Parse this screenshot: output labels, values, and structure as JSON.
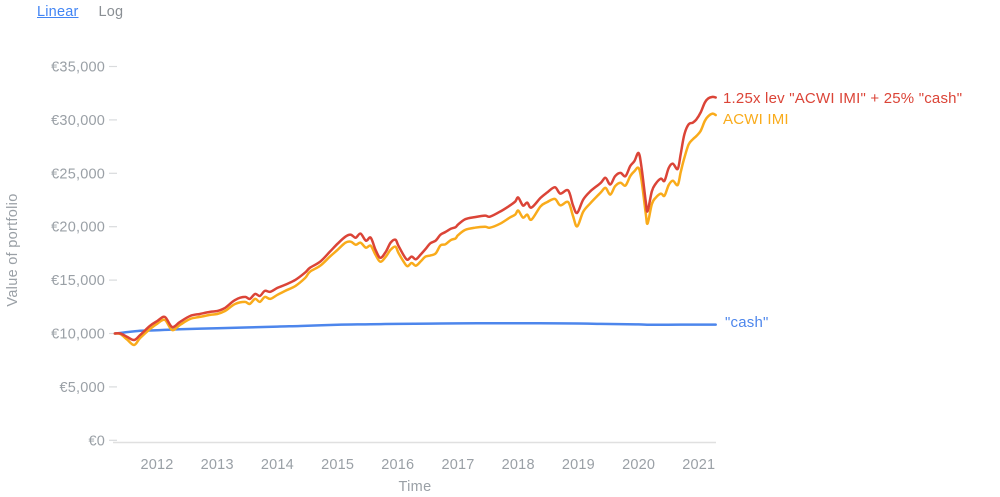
{
  "view_toggle": {
    "linear_label": "Linear",
    "log_label": "Log",
    "active": "Linear"
  },
  "colors": {
    "lev": "#DB4437",
    "acwi": "#F9AB1B",
    "cash": "#4D86EC",
    "tick_text": "#9AA0A6",
    "axis_line": "#E0E0E0",
    "link_blue": "#4285F4"
  },
  "chart_data": {
    "type": "line",
    "title": "",
    "xlabel": "Time",
    "ylabel": "Value of portfolio",
    "currency": "EUR",
    "grid": false,
    "legend_position": "line-end-labels",
    "xlim": [
      2011.3,
      2021.3
    ],
    "ylim": [
      0,
      35000
    ],
    "x_ticks": [
      "2012",
      "2013",
      "2014",
      "2015",
      "2016",
      "2017",
      "2018",
      "2019",
      "2020",
      "2021"
    ],
    "x_tick_values": [
      2012,
      2013,
      2014,
      2015,
      2016,
      2017,
      2018,
      2019,
      2020,
      2021
    ],
    "y_ticks": [
      {
        "label": "€0",
        "value": 0
      },
      {
        "label": "€5,000",
        "value": 5000
      },
      {
        "label": "€10,000",
        "value": 10000
      },
      {
        "label": "€15,000",
        "value": 15000
      },
      {
        "label": "€20,000",
        "value": 20000
      },
      {
        "label": "€25,000",
        "value": 25000
      },
      {
        "label": "€30,000",
        "value": 30000
      },
      {
        "label": "€35,000",
        "value": 35000
      }
    ],
    "series": [
      {
        "name": "1.25x lev \"ACWI IMI\" + 25% \"cash\"",
        "color": "#DB4437",
        "points": [
          [
            2011.3,
            10000
          ],
          [
            2011.39,
            10000
          ],
          [
            2011.5,
            9700
          ],
          [
            2011.62,
            9390
          ],
          [
            2011.72,
            9860
          ],
          [
            2011.88,
            10700
          ],
          [
            2012.0,
            11150
          ],
          [
            2012.13,
            11550
          ],
          [
            2012.25,
            10610
          ],
          [
            2012.38,
            11080
          ],
          [
            2012.55,
            11640
          ],
          [
            2012.71,
            11830
          ],
          [
            2012.88,
            12020
          ],
          [
            2013.0,
            12110
          ],
          [
            2013.13,
            12400
          ],
          [
            2013.3,
            13150
          ],
          [
            2013.46,
            13430
          ],
          [
            2013.54,
            13240
          ],
          [
            2013.63,
            13710
          ],
          [
            2013.71,
            13520
          ],
          [
            2013.79,
            13990
          ],
          [
            2013.88,
            13900
          ],
          [
            2014.0,
            14270
          ],
          [
            2014.13,
            14560
          ],
          [
            2014.3,
            15030
          ],
          [
            2014.46,
            15700
          ],
          [
            2014.54,
            16150
          ],
          [
            2014.71,
            16720
          ],
          [
            2014.87,
            17650
          ],
          [
            2015.0,
            18410
          ],
          [
            2015.13,
            19060
          ],
          [
            2015.22,
            19250
          ],
          [
            2015.3,
            18970
          ],
          [
            2015.38,
            19350
          ],
          [
            2015.47,
            18690
          ],
          [
            2015.55,
            18970
          ],
          [
            2015.63,
            17840
          ],
          [
            2015.71,
            17090
          ],
          [
            2015.8,
            17650
          ],
          [
            2015.88,
            18500
          ],
          [
            2015.96,
            18780
          ],
          [
            2016.01,
            18220
          ],
          [
            2016.1,
            17300
          ],
          [
            2016.16,
            16900
          ],
          [
            2016.23,
            17200
          ],
          [
            2016.3,
            16950
          ],
          [
            2016.38,
            17400
          ],
          [
            2016.46,
            17900
          ],
          [
            2016.54,
            18450
          ],
          [
            2016.63,
            18700
          ],
          [
            2016.71,
            19250
          ],
          [
            2016.79,
            19500
          ],
          [
            2016.88,
            19800
          ],
          [
            2016.96,
            19950
          ],
          [
            2017.0,
            20200
          ],
          [
            2017.12,
            20700
          ],
          [
            2017.28,
            20900
          ],
          [
            2017.45,
            21040
          ],
          [
            2017.53,
            20940
          ],
          [
            2017.7,
            21410
          ],
          [
            2017.86,
            21980
          ],
          [
            2017.95,
            22350
          ],
          [
            2018.0,
            22730
          ],
          [
            2018.08,
            21980
          ],
          [
            2018.15,
            22260
          ],
          [
            2018.22,
            21790
          ],
          [
            2018.37,
            22700
          ],
          [
            2018.48,
            23200
          ],
          [
            2018.61,
            23700
          ],
          [
            2018.7,
            23100
          ],
          [
            2018.83,
            23400
          ],
          [
            2018.91,
            22000
          ],
          [
            2018.98,
            21290
          ],
          [
            2019.08,
            22540
          ],
          [
            2019.2,
            23320
          ],
          [
            2019.37,
            24100
          ],
          [
            2019.45,
            24580
          ],
          [
            2019.53,
            23950
          ],
          [
            2019.61,
            24730
          ],
          [
            2019.7,
            25040
          ],
          [
            2019.78,
            24730
          ],
          [
            2019.86,
            25670
          ],
          [
            2019.93,
            26140
          ],
          [
            2020.0,
            26900
          ],
          [
            2020.05,
            25500
          ],
          [
            2020.12,
            22300
          ],
          [
            2020.15,
            21450
          ],
          [
            2020.22,
            23300
          ],
          [
            2020.28,
            24000
          ],
          [
            2020.37,
            24500
          ],
          [
            2020.43,
            24300
          ],
          [
            2020.5,
            25500
          ],
          [
            2020.57,
            25900
          ],
          [
            2020.65,
            25400
          ],
          [
            2020.7,
            26800
          ],
          [
            2020.76,
            28650
          ],
          [
            2020.83,
            29580
          ],
          [
            2020.9,
            29740
          ],
          [
            2020.96,
            30050
          ],
          [
            2021.03,
            30680
          ],
          [
            2021.1,
            31620
          ],
          [
            2021.16,
            32020
          ],
          [
            2021.23,
            32150
          ],
          [
            2021.28,
            32100
          ]
        ]
      },
      {
        "name": "ACWI IMI",
        "color": "#F9AB1B",
        "points": [
          [
            2011.3,
            10000
          ],
          [
            2011.39,
            9950
          ],
          [
            2011.5,
            9450
          ],
          [
            2011.62,
            8920
          ],
          [
            2011.72,
            9580
          ],
          [
            2011.88,
            10400
          ],
          [
            2012.0,
            10900
          ],
          [
            2012.13,
            11270
          ],
          [
            2012.25,
            10330
          ],
          [
            2012.38,
            10800
          ],
          [
            2012.55,
            11360
          ],
          [
            2012.71,
            11550
          ],
          [
            2012.88,
            11740
          ],
          [
            2013.0,
            11830
          ],
          [
            2013.13,
            12110
          ],
          [
            2013.3,
            12770
          ],
          [
            2013.46,
            12960
          ],
          [
            2013.54,
            12770
          ],
          [
            2013.63,
            13240
          ],
          [
            2013.71,
            12960
          ],
          [
            2013.79,
            13430
          ],
          [
            2013.88,
            13240
          ],
          [
            2014.0,
            13620
          ],
          [
            2014.13,
            13990
          ],
          [
            2014.3,
            14460
          ],
          [
            2014.46,
            15200
          ],
          [
            2014.54,
            15780
          ],
          [
            2014.71,
            16340
          ],
          [
            2014.87,
            17190
          ],
          [
            2015.0,
            17840
          ],
          [
            2015.13,
            18500
          ],
          [
            2015.22,
            18600
          ],
          [
            2015.3,
            18310
          ],
          [
            2015.38,
            18500
          ],
          [
            2015.47,
            18030
          ],
          [
            2015.55,
            18220
          ],
          [
            2015.63,
            17370
          ],
          [
            2015.71,
            16720
          ],
          [
            2015.8,
            17190
          ],
          [
            2015.88,
            17840
          ],
          [
            2015.96,
            18130
          ],
          [
            2016.01,
            17560
          ],
          [
            2016.1,
            16700
          ],
          [
            2016.16,
            16300
          ],
          [
            2016.23,
            16600
          ],
          [
            2016.3,
            16350
          ],
          [
            2016.38,
            16750
          ],
          [
            2016.46,
            17200
          ],
          [
            2016.54,
            17300
          ],
          [
            2016.63,
            17500
          ],
          [
            2016.71,
            18250
          ],
          [
            2016.79,
            18350
          ],
          [
            2016.88,
            18750
          ],
          [
            2016.96,
            18900
          ],
          [
            2017.0,
            19200
          ],
          [
            2017.12,
            19700
          ],
          [
            2017.28,
            19910
          ],
          [
            2017.45,
            20000
          ],
          [
            2017.53,
            19910
          ],
          [
            2017.7,
            20280
          ],
          [
            2017.86,
            20850
          ],
          [
            2017.95,
            21130
          ],
          [
            2018.0,
            21510
          ],
          [
            2018.08,
            20850
          ],
          [
            2018.15,
            21130
          ],
          [
            2018.22,
            20660
          ],
          [
            2018.37,
            21900
          ],
          [
            2018.48,
            22300
          ],
          [
            2018.61,
            22600
          ],
          [
            2018.7,
            22000
          ],
          [
            2018.83,
            22300
          ],
          [
            2018.91,
            21000
          ],
          [
            2018.98,
            20030
          ],
          [
            2019.08,
            21400
          ],
          [
            2019.2,
            22200
          ],
          [
            2019.37,
            23200
          ],
          [
            2019.45,
            23630
          ],
          [
            2019.53,
            23010
          ],
          [
            2019.61,
            23790
          ],
          [
            2019.7,
            24110
          ],
          [
            2019.78,
            23850
          ],
          [
            2019.86,
            24730
          ],
          [
            2019.93,
            25200
          ],
          [
            2020.0,
            25500
          ],
          [
            2020.05,
            24300
          ],
          [
            2020.12,
            21200
          ],
          [
            2020.15,
            20300
          ],
          [
            2020.22,
            22100
          ],
          [
            2020.28,
            22700
          ],
          [
            2020.37,
            23100
          ],
          [
            2020.43,
            22900
          ],
          [
            2020.5,
            23900
          ],
          [
            2020.57,
            24300
          ],
          [
            2020.65,
            23900
          ],
          [
            2020.7,
            25100
          ],
          [
            2020.76,
            26450
          ],
          [
            2020.83,
            27700
          ],
          [
            2020.9,
            28180
          ],
          [
            2020.96,
            28490
          ],
          [
            2021.03,
            28960
          ],
          [
            2021.1,
            29900
          ],
          [
            2021.16,
            30360
          ],
          [
            2021.23,
            30590
          ],
          [
            2021.28,
            30450
          ]
        ]
      },
      {
        "name": "\"cash\"",
        "color": "#4D86EC",
        "points": [
          [
            2011.3,
            10000
          ],
          [
            2011.72,
            10250
          ],
          [
            2012.0,
            10300
          ],
          [
            2012.38,
            10400
          ],
          [
            2013.0,
            10500
          ],
          [
            2013.54,
            10570
          ],
          [
            2014.0,
            10650
          ],
          [
            2014.38,
            10700
          ],
          [
            2015.0,
            10820
          ],
          [
            2015.55,
            10870
          ],
          [
            2016.01,
            10900
          ],
          [
            2016.54,
            10930
          ],
          [
            2017.0,
            10950
          ],
          [
            2017.7,
            10960
          ],
          [
            2018.0,
            10960
          ],
          [
            2018.7,
            10950
          ],
          [
            2019.0,
            10940
          ],
          [
            2019.37,
            10900
          ],
          [
            2020.0,
            10850
          ],
          [
            2020.2,
            10820
          ],
          [
            2020.7,
            10830
          ],
          [
            2021.28,
            10830
          ]
        ]
      }
    ]
  }
}
